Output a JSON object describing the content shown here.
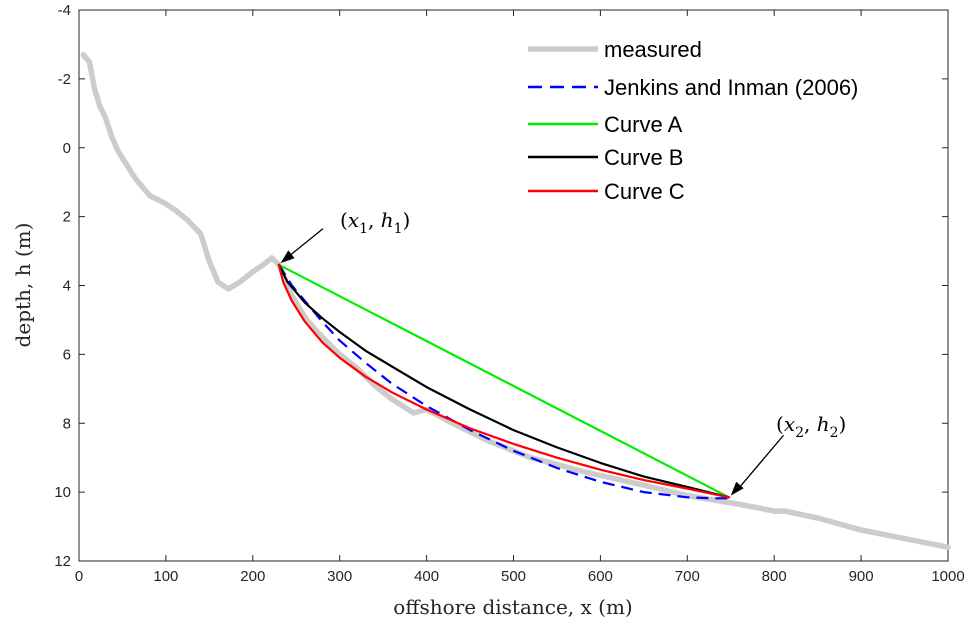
{
  "chart_data": {
    "type": "line",
    "xlabel": "offshore distance, x (m)",
    "ylabel": "depth, h (m)",
    "xlim": [
      0,
      1000
    ],
    "ylim": [
      12,
      -4
    ],
    "y_reversed": true,
    "xticks": [
      0,
      100,
      200,
      300,
      400,
      500,
      600,
      700,
      800,
      900,
      1000
    ],
    "yticks": [
      -4,
      -2,
      0,
      2,
      4,
      6,
      8,
      10,
      12
    ],
    "ytick_labels": [
      "-4",
      "-2",
      "0",
      "2",
      "4",
      "6",
      "8",
      "10",
      "12"
    ],
    "legend_position": "top-right",
    "grid": false,
    "series": [
      {
        "name": "measured",
        "color": "#cccccc",
        "style": "solid",
        "x": [
          5,
          12,
          18,
          24,
          30,
          38,
          45,
          55,
          65,
          75,
          82,
          90,
          98,
          110,
          125,
          140,
          150,
          155,
          160,
          172,
          185,
          200,
          212,
          222,
          230,
          245,
          262,
          280,
          300,
          320,
          340,
          360,
          385,
          400,
          430,
          470,
          520,
          580,
          650,
          700,
          748,
          780,
          800,
          812,
          850,
          900,
          950,
          1000
        ],
        "y": [
          -2.7,
          -2.5,
          -1.7,
          -1.2,
          -0.9,
          -0.3,
          0.1,
          0.5,
          0.9,
          1.2,
          1.4,
          1.5,
          1.6,
          1.8,
          2.1,
          2.5,
          3.3,
          3.6,
          3.9,
          4.1,
          3.9,
          3.6,
          3.4,
          3.2,
          3.4,
          4.3,
          5.0,
          5.5,
          6.0,
          6.4,
          6.9,
          7.3,
          7.7,
          7.6,
          8.0,
          8.5,
          9.0,
          9.4,
          9.8,
          10.1,
          10.3,
          10.45,
          10.55,
          10.55,
          10.75,
          11.1,
          11.35,
          11.6
        ]
      },
      {
        "name": "Jenkins and Inman (2006)",
        "color": "#0000ff",
        "style": "dashed",
        "x": [
          230,
          245,
          260,
          280,
          300,
          330,
          360,
          400,
          450,
          500,
          550,
          600,
          650,
          700,
          730,
          748
        ],
        "y": [
          3.4,
          4.0,
          4.45,
          5.05,
          5.6,
          6.25,
          6.85,
          7.5,
          8.2,
          8.8,
          9.3,
          9.7,
          10.0,
          10.15,
          10.18,
          10.18
        ]
      },
      {
        "name": "Curve A",
        "color": "#00ee00",
        "style": "solid",
        "x": [
          230,
          748
        ],
        "y": [
          3.4,
          10.15
        ]
      },
      {
        "name": "Curve B",
        "color": "#000000",
        "style": "solid",
        "x": [
          230,
          240,
          260,
          280,
          300,
          330,
          360,
          400,
          450,
          500,
          550,
          600,
          650,
          700,
          748
        ],
        "y": [
          3.4,
          3.9,
          4.5,
          4.95,
          5.35,
          5.9,
          6.35,
          6.95,
          7.6,
          8.2,
          8.7,
          9.15,
          9.55,
          9.85,
          10.15
        ]
      },
      {
        "name": "Curve C",
        "color": "#ff0000",
        "style": "solid",
        "x": [
          230,
          235,
          245,
          260,
          280,
          300,
          330,
          360,
          400,
          450,
          500,
          550,
          600,
          650,
          700,
          748
        ],
        "y": [
          3.4,
          3.9,
          4.45,
          5.05,
          5.65,
          6.1,
          6.65,
          7.1,
          7.6,
          8.15,
          8.6,
          9.0,
          9.35,
          9.65,
          9.9,
          10.15
        ]
      }
    ],
    "annotations": [
      {
        "label": "(x1, h1)",
        "text_x": 290,
        "text_y": 2.0,
        "point_x": 232,
        "point_y": 3.35
      },
      {
        "label": "(x2, h2)",
        "text_x": 820,
        "text_y": 8.0,
        "point_x": 750,
        "point_y": 10.1
      }
    ]
  }
}
